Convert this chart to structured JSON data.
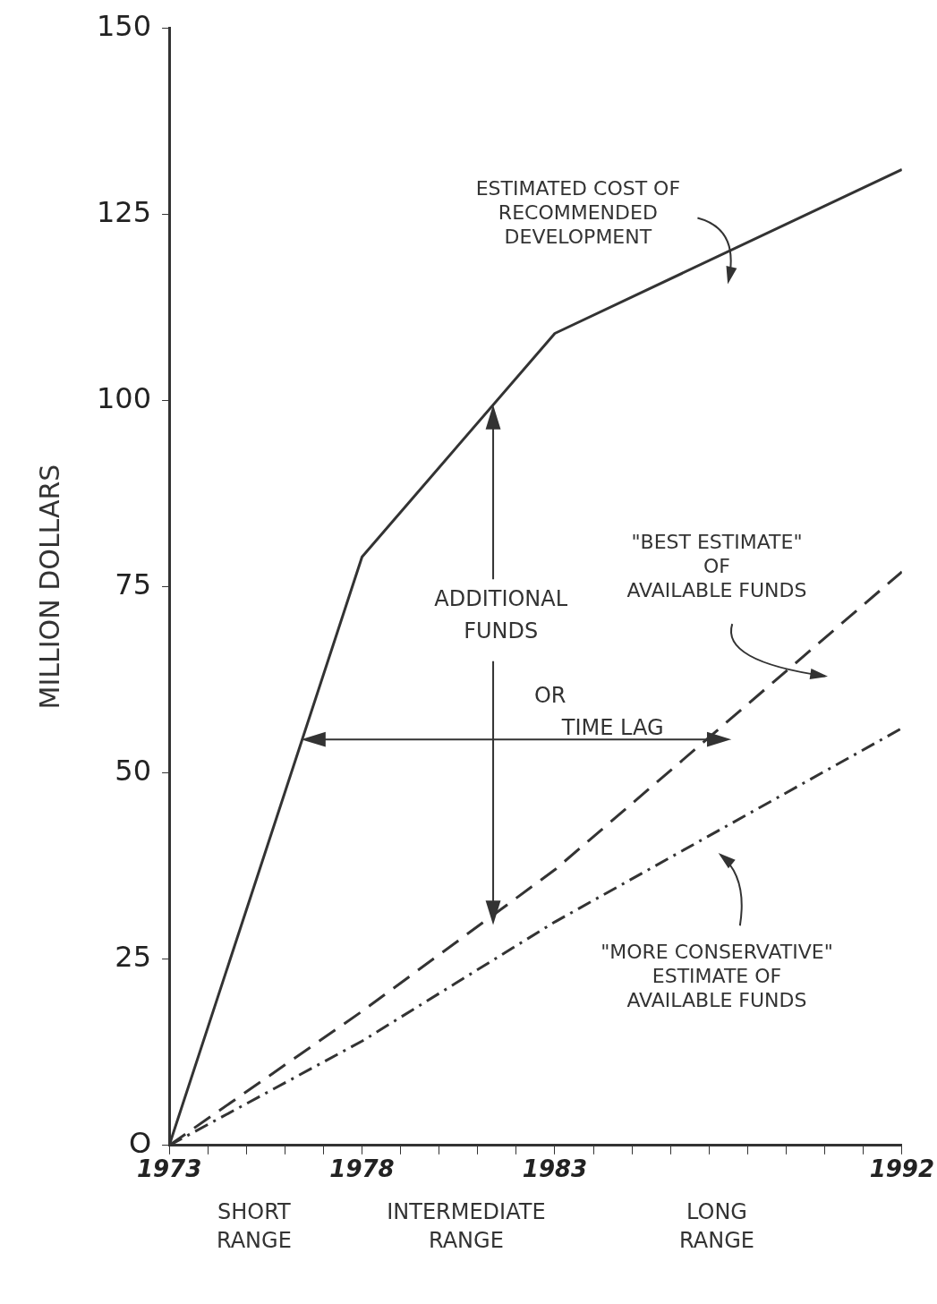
{
  "chart_data": {
    "type": "line",
    "ylabel": "MILLION DOLLARS",
    "xlim": [
      1973,
      1992
    ],
    "xticks": [
      1973,
      {
        "value": 1974,
        "label": null
      },
      {
        "value": 1975,
        "label": null
      },
      {
        "value": 1976,
        "label": null
      },
      {
        "value": 1977,
        "label": null
      },
      1978,
      {
        "value": 1979,
        "label": null
      },
      {
        "value": 1980,
        "label": null
      },
      {
        "value": 1981,
        "label": null
      },
      {
        "value": 1982,
        "label": null
      },
      1983,
      {
        "value": 1984,
        "label": null
      },
      {
        "value": 1985,
        "label": null
      },
      {
        "value": 1986,
        "label": null
      },
      {
        "value": 1987,
        "label": null
      },
      {
        "value": 1988,
        "label": null
      },
      {
        "value": 1989,
        "label": null
      },
      {
        "value": 1990,
        "label": null
      },
      {
        "value": 1991,
        "label": null
      },
      1992
    ],
    "ylim": [
      0,
      150
    ],
    "yticks": [
      {
        "value": 0,
        "label": "O"
      },
      25,
      50,
      75,
      100,
      125,
      150
    ],
    "marker": "none",
    "series": [
      {
        "color": "#333333",
        "line_style": "solid",
        "x": [
          1973,
          1978,
          1983,
          1992
        ],
        "values": [
          0,
          79,
          109,
          131
        ]
      },
      {
        "color": "#333333",
        "line_style": "dashed",
        "x": [
          1973,
          1978,
          1983,
          1992
        ],
        "values": [
          0,
          18,
          37,
          77
        ]
      },
      {
        "color": "#333333",
        "line_style": "dotted",
        "x": [
          1973,
          1978,
          1983,
          1992
        ],
        "values": [
          0,
          14,
          30,
          56
        ]
      }
    ],
    "annotations": [
      "ESTIMATED COST OF\nRECOMMENDED\nDEVELOPMENT",
      "\"BEST ESTIMATE\"\nOF\nAVAILABLE FUNDS",
      "\"MORE CONSERVATIVE\"\nESTIMATE OF\nAVAILABLE FUNDS",
      "ADDITIONAL\nFUNDS\n\nOR\nTIME LAG",
      "SHORT\nRANGE",
      "INTERMEDIATE\nRANGE",
      "LONG\nRANGE"
    ]
  }
}
